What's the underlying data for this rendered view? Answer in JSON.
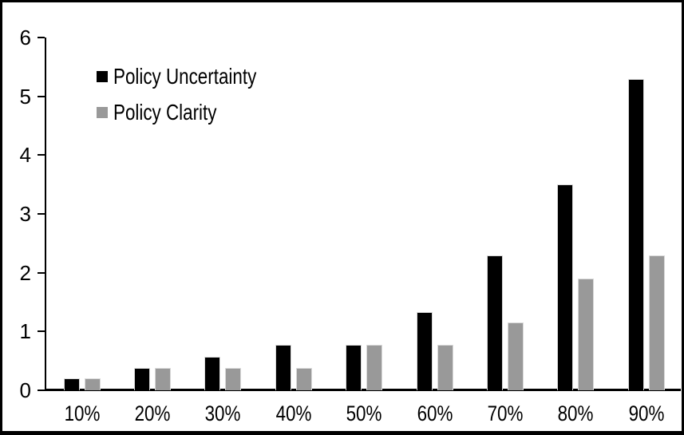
{
  "chart_data": {
    "type": "bar",
    "categories": [
      "10%",
      "20%",
      "30%",
      "40%",
      "50%",
      "60%",
      "70%",
      "80%",
      "90%"
    ],
    "series": [
      {
        "name": "Policy Uncertainty",
        "color": "#000000",
        "values": [
          0.2,
          0.38,
          0.57,
          0.77,
          0.77,
          1.33,
          2.3,
          3.5,
          5.3
        ]
      },
      {
        "name": "Policy Clarity",
        "color": "#999999",
        "values": [
          0.2,
          0.38,
          0.38,
          0.38,
          0.77,
          0.77,
          1.15,
          1.9,
          2.3
        ]
      }
    ],
    "yticks": [
      0,
      1,
      2,
      3,
      4,
      5,
      6
    ],
    "ylim": [
      0,
      6
    ],
    "grid": false,
    "legend_position": "top-left",
    "axis_color": "#000000",
    "background_color": "#ffffff"
  }
}
